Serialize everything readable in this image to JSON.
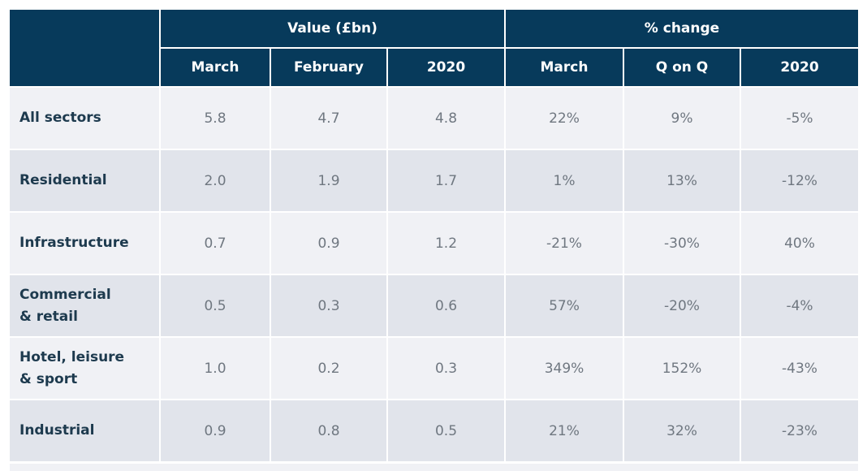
{
  "chart_data": {
    "type": "table",
    "group_headers": [
      "Value (£bn)",
      "% change"
    ],
    "columns": [
      "March",
      "February",
      "2020",
      "March",
      "Q on Q",
      "2020"
    ],
    "rows": [
      {
        "label": "All sectors",
        "values": [
          "5.8",
          "4.7",
          "4.8",
          "22%",
          "9%",
          "-5%"
        ]
      },
      {
        "label": "Residential",
        "values": [
          "2.0",
          "1.9",
          "1.7",
          "1%",
          "13%",
          "-12%"
        ]
      },
      {
        "label": "Infrastructure",
        "values": [
          "0.7",
          "0.9",
          "1.2",
          "-21%",
          "-30%",
          "40%"
        ]
      },
      {
        "label": "Commercial & retail",
        "values": [
          "0.5",
          "0.3",
          "0.6",
          "57%",
          "-20%",
          "-4%"
        ]
      },
      {
        "label": "Hotel, leisure & sport",
        "values": [
          "1.0",
          "0.2",
          "0.3",
          "349%",
          "152%",
          "-43%"
        ]
      },
      {
        "label": "Industrial",
        "values": [
          "0.9",
          "0.8",
          "0.5",
          "21%",
          "32%",
          "-23%"
        ]
      }
    ],
    "colors": {
      "header": "#073a5b",
      "row_light": "#f0f1f5",
      "row_dark": "#e1e4eb",
      "label_text": "#1d3a4e",
      "value_text": "#6f7780"
    }
  }
}
